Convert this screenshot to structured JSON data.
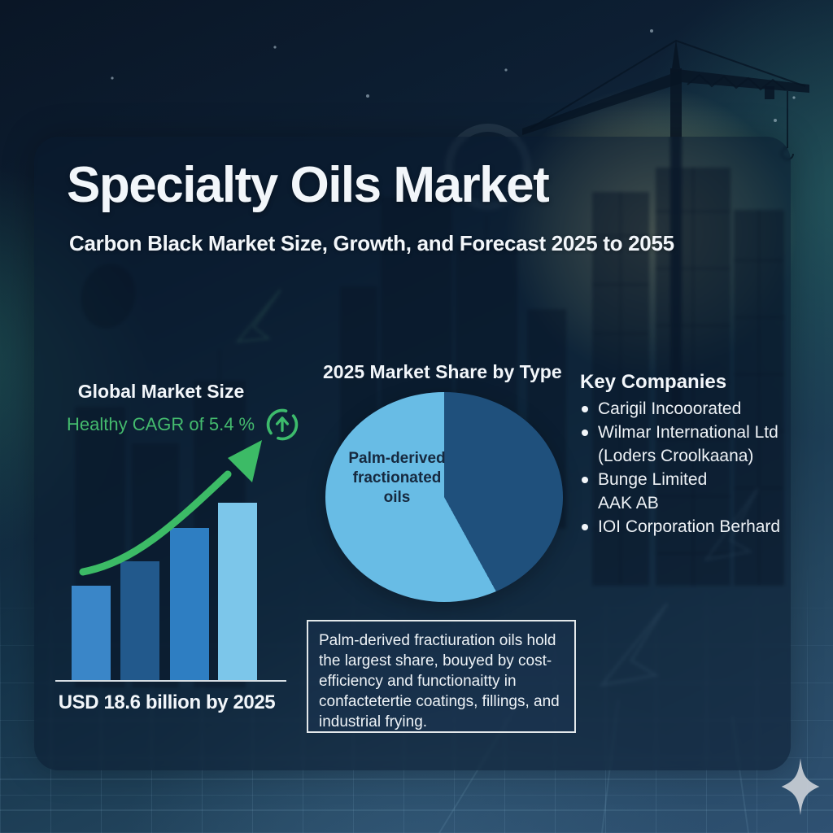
{
  "header": {
    "title": "Specialty Oils Market",
    "subtitle": "Carbon Black Market Size, Growth, and Forecast 2025 to 2055"
  },
  "market_size": {
    "heading": "Global Market Size",
    "cagr_text": "Healthy CAGR of 5.4 %",
    "cagr_icon": "arrow-up-circle-icon",
    "caption": "USD 18.6 billion by 2025",
    "accent_green": "#3dbb6c"
  },
  "pie_section": {
    "title": "2025 Market Share by Type"
  },
  "key_companies": {
    "heading": "Key Companies",
    "items": [
      {
        "bullet": true,
        "label": "Carigil Incooorated"
      },
      {
        "bullet": true,
        "label": "Wilmar International Ltd"
      },
      {
        "bullet": false,
        "label": "(Loders Croolkaana)"
      },
      {
        "bullet": true,
        "label": "Bunge Limited"
      },
      {
        "bullet": false,
        "label": "AAK AB"
      },
      {
        "bullet": true,
        "label": "IOI Corporation Berhard"
      }
    ]
  },
  "note_box": {
    "text": "Palm-derived fractiuration oils hold the largest share, bouyed by cost-efficiency and functionaitty in confactetertie coatings, fillings, and industrial frying."
  },
  "decor": {
    "sparkle_icon": "four-point-sparkle",
    "background_theme": "construction crane and city silhouette over blue gradient with blueprint grid"
  },
  "chart_data": [
    {
      "type": "bar",
      "title": "Global Market Size",
      "annotation": "Healthy CAGR of 5.4 %",
      "caption": "USD 18.6 billion by 2025",
      "categories": [
        "bar-1",
        "bar-2",
        "bar-3",
        "bar-4"
      ],
      "values_relative": [
        0.53,
        0.67,
        0.86,
        1.0
      ],
      "bar_colors": [
        "#3a86c8",
        "#22598c",
        "#2e7ec2",
        "#7cc6ea"
      ],
      "axis_labels_visible": false,
      "extra": "green upward curved growth arrow above bars"
    },
    {
      "type": "pie",
      "title": "2025 Market Share by Type",
      "start_angle_deg": 0,
      "slices": [
        {
          "label": "",
          "value_pct": 42,
          "color": "#1f507c",
          "label_visible": false
        },
        {
          "label": "Palm-derived fractionated oils",
          "value_pct": 58,
          "color": "#68bce5",
          "label_visible": true
        }
      ]
    }
  ]
}
